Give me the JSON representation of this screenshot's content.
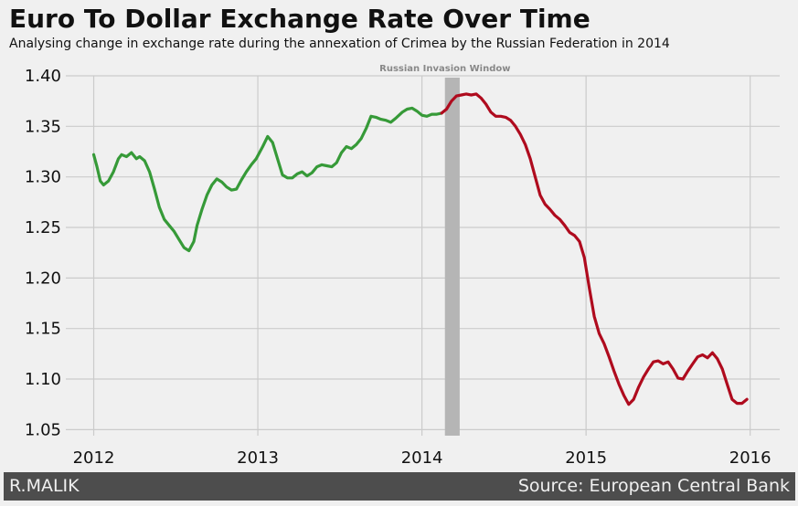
{
  "header": {
    "title": "Euro To Dollar Exchange Rate Over Time",
    "subtitle": "Analysing change in exchange rate during the annexation of Crimea by the Russian Federation in 2014"
  },
  "footer": {
    "author": "R.MALIK",
    "source": "Source: European Central Bank"
  },
  "chart_data": {
    "type": "line",
    "xlabel": "",
    "ylabel": "",
    "xlim": [
      2011.83,
      2016.18
    ],
    "ylim": [
      1.044,
      1.4
    ],
    "x_ticks": [
      2012,
      2013,
      2014,
      2015,
      2016
    ],
    "x_tick_labels": [
      "2012",
      "2013",
      "2014",
      "2015",
      "2016"
    ],
    "y_ticks": [
      1.05,
      1.1,
      1.15,
      1.2,
      1.25,
      1.3,
      1.35,
      1.4
    ],
    "y_tick_labels": [
      "1.05",
      "1.10",
      "1.15",
      "1.20",
      "1.25",
      "1.30",
      "1.35",
      "1.40"
    ],
    "grid": true,
    "colors": {
      "before": "#369a38",
      "after": "#af0b1e",
      "band": "#b5b5b5",
      "background": "#f0f0f0",
      "grid": "#cbcbcb",
      "footer": "#4d4d4d"
    },
    "annotation": {
      "text": "Russian Invasion Window",
      "x_start": 2014.14,
      "x_end": 2014.23
    },
    "series": [
      {
        "x": [
          2012.0,
          2012.02,
          2012.04,
          2012.06,
          2012.09,
          2012.12,
          2012.15,
          2012.17,
          2012.2,
          2012.23,
          2012.26,
          2012.28,
          2012.31,
          2012.34,
          2012.37,
          2012.4,
          2012.43,
          2012.46,
          2012.49,
          2012.52,
          2012.55,
          2012.58,
          2012.61,
          2012.63,
          2012.66,
          2012.69,
          2012.72,
          2012.75,
          2012.78,
          2012.81,
          2012.84,
          2012.87,
          2012.9,
          2012.93,
          2012.96,
          2012.99,
          2013.03,
          2013.06,
          2013.09,
          2013.12,
          2013.15,
          2013.18,
          2013.21,
          2013.24,
          2013.27,
          2013.3,
          2013.33,
          2013.36,
          2013.39,
          2013.42,
          2013.45,
          2013.48,
          2013.51,
          2013.54,
          2013.57,
          2013.6,
          2013.63,
          2013.66,
          2013.69,
          2013.72,
          2013.75,
          2013.78,
          2013.81,
          2013.84,
          2013.88,
          2013.91,
          2013.94,
          2013.97,
          2014.0,
          2014.03,
          2014.06,
          2014.09,
          2014.12
        ],
        "values": [
          1.322,
          1.31,
          1.296,
          1.292,
          1.296,
          1.305,
          1.318,
          1.322,
          1.32,
          1.324,
          1.318,
          1.32,
          1.316,
          1.305,
          1.288,
          1.27,
          1.258,
          1.252,
          1.246,
          1.238,
          1.23,
          1.227,
          1.236,
          1.252,
          1.268,
          1.282,
          1.292,
          1.298,
          1.295,
          1.29,
          1.287,
          1.288,
          1.297,
          1.305,
          1.312,
          1.318,
          1.33,
          1.34,
          1.334,
          1.318,
          1.302,
          1.299,
          1.299,
          1.303,
          1.305,
          1.301,
          1.304,
          1.31,
          1.312,
          1.311,
          1.31,
          1.314,
          1.324,
          1.33,
          1.328,
          1.332,
          1.338,
          1.348,
          1.36,
          1.359,
          1.357,
          1.356,
          1.354,
          1.358,
          1.364,
          1.367,
          1.368,
          1.365,
          1.361,
          1.36,
          1.362,
          1.362,
          1.363
        ]
      },
      {
        "x": [
          2014.12,
          2014.15,
          2014.18,
          2014.21,
          2014.24,
          2014.27,
          2014.3,
          2014.33,
          2014.36,
          2014.39,
          2014.42,
          2014.45,
          2014.48,
          2014.51,
          2014.54,
          2014.57,
          2014.6,
          2014.63,
          2014.66,
          2014.69,
          2014.72,
          2014.75,
          2014.78,
          2014.81,
          2014.84,
          2014.87,
          2014.9,
          2014.93,
          2014.96,
          2014.99,
          2015.02,
          2015.05,
          2015.08,
          2015.11,
          2015.14,
          2015.17,
          2015.2,
          2015.23,
          2015.26,
          2015.29,
          2015.32,
          2015.35,
          2015.38,
          2015.41,
          2015.44,
          2015.47,
          2015.5,
          2015.53,
          2015.56,
          2015.59,
          2015.62,
          2015.65,
          2015.68,
          2015.71,
          2015.74,
          2015.77,
          2015.8,
          2015.83,
          2015.86,
          2015.89,
          2015.92,
          2015.95,
          2015.98
        ],
        "values": [
          1.363,
          1.367,
          1.375,
          1.38,
          1.381,
          1.382,
          1.381,
          1.382,
          1.378,
          1.372,
          1.364,
          1.36,
          1.36,
          1.359,
          1.356,
          1.35,
          1.342,
          1.332,
          1.318,
          1.3,
          1.282,
          1.273,
          1.268,
          1.262,
          1.258,
          1.252,
          1.245,
          1.242,
          1.236,
          1.22,
          1.19,
          1.162,
          1.145,
          1.135,
          1.122,
          1.108,
          1.095,
          1.084,
          1.075,
          1.08,
          1.092,
          1.102,
          1.11,
          1.117,
          1.118,
          1.115,
          1.117,
          1.11,
          1.101,
          1.1,
          1.108,
          1.115,
          1.122,
          1.124,
          1.121,
          1.126,
          1.12,
          1.11,
          1.095,
          1.08,
          1.076,
          1.076,
          1.08
        ]
      }
    ]
  }
}
